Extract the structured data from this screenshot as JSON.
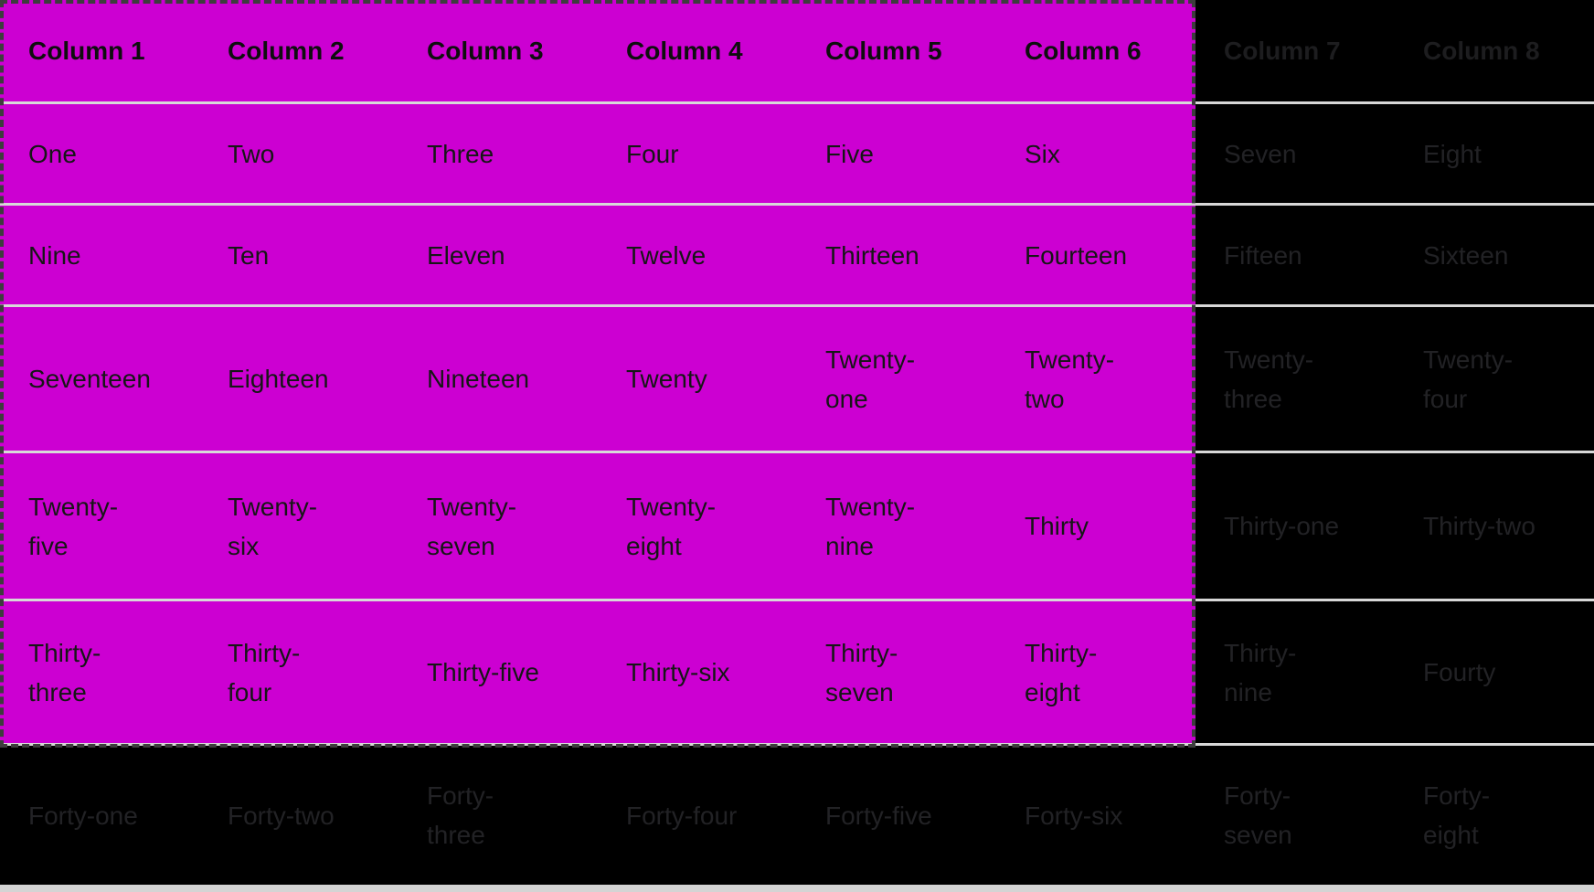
{
  "table": {
    "columns": [
      "Column 1",
      "Column 2",
      "Column 3",
      "Column 4",
      "Column 5",
      "Column 6",
      "Column 7",
      "Column 8"
    ],
    "rows": [
      [
        "One",
        "Two",
        "Three",
        "Four",
        "Five",
        "Six",
        "Seven",
        "Eight"
      ],
      [
        "Nine",
        "Ten",
        "Eleven",
        "Twelve",
        "Thirteen",
        "Fourteen",
        "Fifteen",
        "Sixteen"
      ],
      [
        "Seventeen",
        "Eighteen",
        "Nineteen",
        "Twenty",
        "Twenty-\none",
        "Twenty-\ntwo",
        "Twenty-\nthree",
        "Twenty-\nfour"
      ],
      [
        "Twenty-\nfive",
        "Twenty-\nsix",
        "Twenty-\nseven",
        "Twenty-\neight",
        "Twenty-\nnine",
        "Thirty",
        "Thirty-one",
        "Thirty-two"
      ],
      [
        "Thirty-\nthree",
        "Thirty-\nfour",
        "Thirty-five",
        "Thirty-six",
        "Thirty-\nseven",
        "Thirty-\neight",
        "Thirty-\nnine",
        "Fourty"
      ],
      [
        "Forty-one",
        "Forty-two",
        "Forty-\nthree",
        "Forty-four",
        "Forty-five",
        "Forty-six",
        "Forty-\nseven",
        "Forty-\neight"
      ]
    ]
  },
  "selection": {
    "includes_header": true,
    "col_start": 0,
    "col_end": 5,
    "row_start": 0,
    "row_end": 4
  },
  "colors": {
    "page_background": "#000000",
    "selection_highlight": "#cc00d2",
    "selection_marquee": "#3d3d3d",
    "row_separator": "#d8d8d8",
    "bottom_bar": "#d4d4d4",
    "text_selected": "#161616",
    "text_selected_header": "#0e0e0e",
    "text_dimmed": "#222225",
    "text_dimmed_header": "#1d1d1f"
  }
}
